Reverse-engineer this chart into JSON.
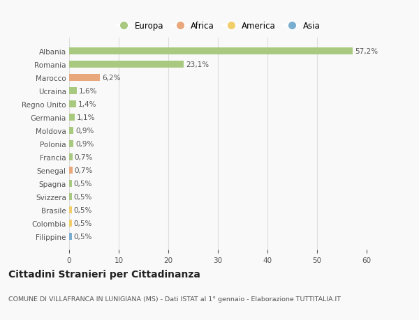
{
  "countries": [
    "Albania",
    "Romania",
    "Marocco",
    "Ucraina",
    "Regno Unito",
    "Germania",
    "Moldova",
    "Polonia",
    "Francia",
    "Senegal",
    "Spagna",
    "Svizzera",
    "Brasile",
    "Colombia",
    "Filippine"
  ],
  "values": [
    57.2,
    23.1,
    6.2,
    1.6,
    1.4,
    1.1,
    0.9,
    0.9,
    0.7,
    0.7,
    0.5,
    0.5,
    0.5,
    0.5,
    0.5
  ],
  "labels": [
    "57,2%",
    "23,1%",
    "6,2%",
    "1,6%",
    "1,4%",
    "1,1%",
    "0,9%",
    "0,9%",
    "0,7%",
    "0,7%",
    "0,5%",
    "0,5%",
    "0,5%",
    "0,5%",
    "0,5%"
  ],
  "categories": [
    "Europa",
    "Europa",
    "Africa",
    "Europa",
    "Europa",
    "Europa",
    "Europa",
    "Europa",
    "Europa",
    "Africa",
    "Europa",
    "Europa",
    "America",
    "America",
    "Asia"
  ],
  "colors": {
    "Europa": "#a8c97f",
    "Africa": "#e8a87c",
    "America": "#f0ce6a",
    "Asia": "#7aaed0"
  },
  "title": "Cittadini Stranieri per Cittadinanza",
  "subtitle": "COMUNE DI VILLAFRANCA IN LUNIGIANA (MS) - Dati ISTAT al 1° gennaio - Elaborazione TUTTITALIA.IT",
  "xlim": [
    0,
    60
  ],
  "xticks": [
    0,
    10,
    20,
    30,
    40,
    50,
    60
  ],
  "background_color": "#f9f9f9",
  "grid_color": "#dddddd",
  "text_color": "#555555",
  "label_fontsize": 7.5,
  "tick_fontsize": 7.5,
  "title_fontsize": 10,
  "subtitle_fontsize": 6.8,
  "bar_height": 0.55
}
